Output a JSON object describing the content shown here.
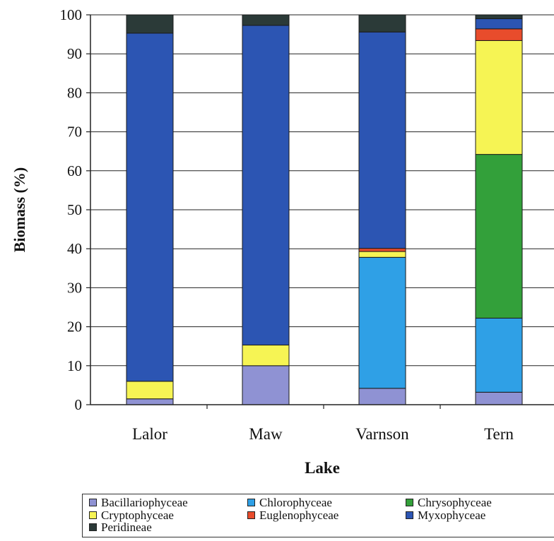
{
  "chart_data": {
    "type": "bar",
    "stacked": true,
    "title": "",
    "xlabel": "Lake",
    "ylabel": "Biomass (%)",
    "ylim": [
      0,
      100
    ],
    "yticks": [
      0,
      10,
      20,
      30,
      40,
      50,
      60,
      70,
      80,
      90,
      100
    ],
    "categories": [
      "Lalor",
      "Maw",
      "Varnson",
      "Tern"
    ],
    "grid": true,
    "legend_position": "bottom",
    "series": [
      {
        "name": "Bacillariophyceae",
        "color": "#8f92d3",
        "values": [
          1.5,
          10,
          4.2,
          3.2
        ]
      },
      {
        "name": "Chlorophyceae",
        "color": "#2fa0e6",
        "values": [
          0,
          0,
          33.6,
          19
        ]
      },
      {
        "name": "Chrysophyceae",
        "color": "#33a03a",
        "values": [
          0,
          0,
          0,
          42
        ]
      },
      {
        "name": "Cryptophyceae",
        "color": "#f6f454",
        "values": [
          4.5,
          5.3,
          1.5,
          29.2
        ]
      },
      {
        "name": "Euglenophyceae",
        "color": "#e84c2c",
        "values": [
          0,
          0,
          0.8,
          3
        ]
      },
      {
        "name": "Myxophyceae",
        "color": "#2c55b3",
        "values": [
          89.3,
          82,
          55.5,
          2.6
        ]
      },
      {
        "name": "Peridineae",
        "color": "#2b3a38",
        "values": [
          4.7,
          2.7,
          4.4,
          1
        ]
      }
    ]
  }
}
